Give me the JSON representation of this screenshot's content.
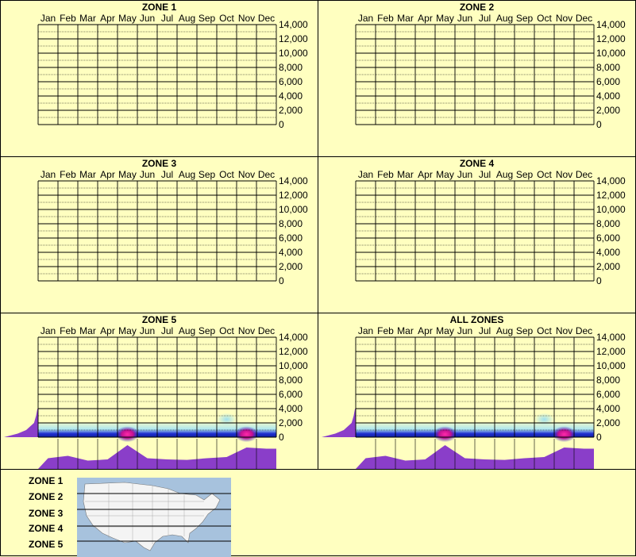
{
  "months": [
    "Jan",
    "Feb",
    "Mar",
    "Apr",
    "May",
    "Jun",
    "Jul",
    "Aug",
    "Sep",
    "Oct",
    "Nov",
    "Dec"
  ],
  "y_ticks": [
    "14,000",
    "12,000",
    "10,000",
    "8,000",
    "6,000",
    "4,000",
    "2,000",
    "0"
  ],
  "colors": {
    "background": "#ffffc0",
    "profile": "#8a3ec9",
    "density_low": "#aee6f0",
    "density_mid": "#2030d0",
    "density_high": "#ff2aa8",
    "map_water": "#a7c2dd",
    "map_land": "#f4f4f4"
  },
  "panels": [
    {
      "title": "ZONE 1",
      "has_data": false
    },
    {
      "title": "ZONE 2",
      "has_data": false
    },
    {
      "title": "ZONE 3",
      "has_data": false
    },
    {
      "title": "ZONE 4",
      "has_data": false
    },
    {
      "title": "ZONE 5",
      "has_data": true
    },
    {
      "title": "ALL ZONES",
      "has_data": true
    }
  ],
  "legend": {
    "zones": [
      "ZONE 1",
      "ZONE 2",
      "ZONE 3",
      "ZONE 4",
      "ZONE 5"
    ]
  },
  "chart_data": {
    "type": "heatmap",
    "x_categories": [
      "Jan",
      "Feb",
      "Mar",
      "Apr",
      "May",
      "Jun",
      "Jul",
      "Aug",
      "Sep",
      "Oct",
      "Nov",
      "Dec"
    ],
    "ylim": [
      0,
      14000
    ],
    "yticks": [
      0,
      2000,
      4000,
      6000,
      8000,
      10000,
      12000,
      14000
    ],
    "grid": true,
    "monthly_activity_profile": [
      0.45,
      0.55,
      0.35,
      0.4,
      1.0,
      0.45,
      0.4,
      0.38,
      0.45,
      0.5,
      0.9,
      0.85
    ],
    "elevation_profile": [
      {
        "y": 0,
        "w": 1.0
      },
      {
        "y": 500,
        "w": 0.6
      },
      {
        "y": 1000,
        "w": 0.35
      },
      {
        "y": 2000,
        "w": 0.12
      },
      {
        "y": 3000,
        "w": 0.06
      },
      {
        "y": 4000,
        "w": 0.02
      }
    ],
    "hotspots": [
      {
        "month": "May",
        "elevation": 200,
        "intensity": "high"
      },
      {
        "month": "Nov",
        "elevation": 200,
        "intensity": "high"
      },
      {
        "month": "Oct",
        "elevation": 2500,
        "intensity": "low"
      }
    ]
  }
}
